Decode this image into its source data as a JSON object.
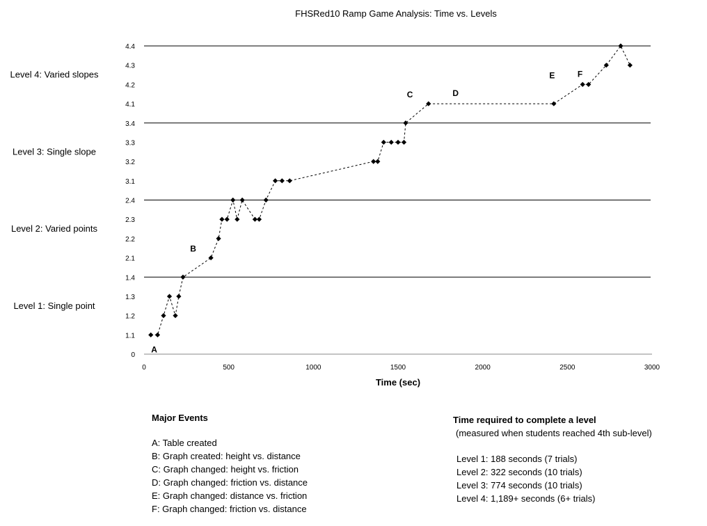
{
  "chart_data": {
    "type": "scatter",
    "title": "FHSRed10 Ramp Game Analysis: Time vs. Levels",
    "xlabel": "Time (sec)",
    "ylabel": "",
    "xlim": [
      0,
      3000
    ],
    "x_ticks": [
      0,
      500,
      1000,
      1500,
      2000,
      2500,
      3000
    ],
    "y_ticks": [
      "0",
      "1.1",
      "1.2",
      "1.3",
      "1.4",
      "2.1",
      "2.2",
      "2.3",
      "2.4",
      "3.1",
      "3.2",
      "3.3",
      "3.4",
      "4.1",
      "4.2",
      "4.3",
      "4.4"
    ],
    "line_style": "dashed",
    "marker": "diamond",
    "points": [
      {
        "x": 40,
        "y": "1.1"
      },
      {
        "x": 80,
        "y": "1.1"
      },
      {
        "x": 115,
        "y": "1.2"
      },
      {
        "x": 150,
        "y": "1.3"
      },
      {
        "x": 185,
        "y": "1.2"
      },
      {
        "x": 205,
        "y": "1.3"
      },
      {
        "x": 230,
        "y": "1.4"
      },
      {
        "x": 395,
        "y": "2.1"
      },
      {
        "x": 440,
        "y": "2.2"
      },
      {
        "x": 460,
        "y": "2.3"
      },
      {
        "x": 490,
        "y": "2.3"
      },
      {
        "x": 525,
        "y": "2.4"
      },
      {
        "x": 550,
        "y": "2.3"
      },
      {
        "x": 580,
        "y": "2.4"
      },
      {
        "x": 655,
        "y": "2.3"
      },
      {
        "x": 680,
        "y": "2.3"
      },
      {
        "x": 720,
        "y": "2.4"
      },
      {
        "x": 775,
        "y": "3.1"
      },
      {
        "x": 815,
        "y": "3.1"
      },
      {
        "x": 860,
        "y": "3.1"
      },
      {
        "x": 1355,
        "y": "3.2"
      },
      {
        "x": 1380,
        "y": "3.2"
      },
      {
        "x": 1415,
        "y": "3.3"
      },
      {
        "x": 1460,
        "y": "3.3"
      },
      {
        "x": 1500,
        "y": "3.3"
      },
      {
        "x": 1535,
        "y": "3.3"
      },
      {
        "x": 1545,
        "y": "3.4"
      },
      {
        "x": 1680,
        "y": "4.1"
      },
      {
        "x": 2420,
        "y": "4.1"
      },
      {
        "x": 2590,
        "y": "4.2"
      },
      {
        "x": 2625,
        "y": "4.2"
      },
      {
        "x": 2730,
        "y": "4.3"
      },
      {
        "x": 2815,
        "y": "4.4"
      },
      {
        "x": 2870,
        "y": "4.3"
      }
    ],
    "level_labels": [
      {
        "text": "Level 4: Varied slopes",
        "between": [
          "4.1",
          "4.4"
        ]
      },
      {
        "text": "Level 3: Single slope",
        "between": [
          "3.1",
          "3.4"
        ]
      },
      {
        "text": "Level 2: Varied points",
        "between": [
          "2.1",
          "2.4"
        ]
      },
      {
        "text": "Level 1: Single point",
        "between": [
          "1.1",
          "1.4"
        ]
      }
    ],
    "level_boundaries": [
      "1.4",
      "2.4",
      "3.4",
      "4.4"
    ],
    "annotations": [
      {
        "text": "A",
        "x": 60,
        "y": "1.1",
        "pos": "below"
      },
      {
        "text": "B",
        "x": 290,
        "y": "2.1",
        "pos": "above"
      },
      {
        "text": "C",
        "x": 1570,
        "y": "4.1",
        "pos": "above"
      },
      {
        "text": "D",
        "x": 1840,
        "y": "4.1",
        "pos": "above-high"
      },
      {
        "text": "E",
        "x": 2410,
        "y": "4.2",
        "pos": "above"
      },
      {
        "text": "F",
        "x": 2575,
        "y": "4.2",
        "pos": "above-high"
      }
    ]
  },
  "events": {
    "heading": "Major Events",
    "items": [
      "A: Table created",
      "B: Graph created: height vs. distance",
      "C: Graph changed: height vs. friction",
      "D: Graph changed: friction vs. distance",
      "E: Graph changed: distance vs. friction",
      "F: Graph changed: friction vs. distance"
    ]
  },
  "times": {
    "heading": "Time required to complete a level",
    "subheading": "(measured when students reached 4th sub-level)",
    "items": [
      "Level 1: 188 seconds (7 trials)",
      "Level 2: 322 seconds (10 trials)",
      "Level 3: 774 seconds (10 trials)",
      "Level 4: 1,189+ seconds (6+ trials)"
    ]
  }
}
